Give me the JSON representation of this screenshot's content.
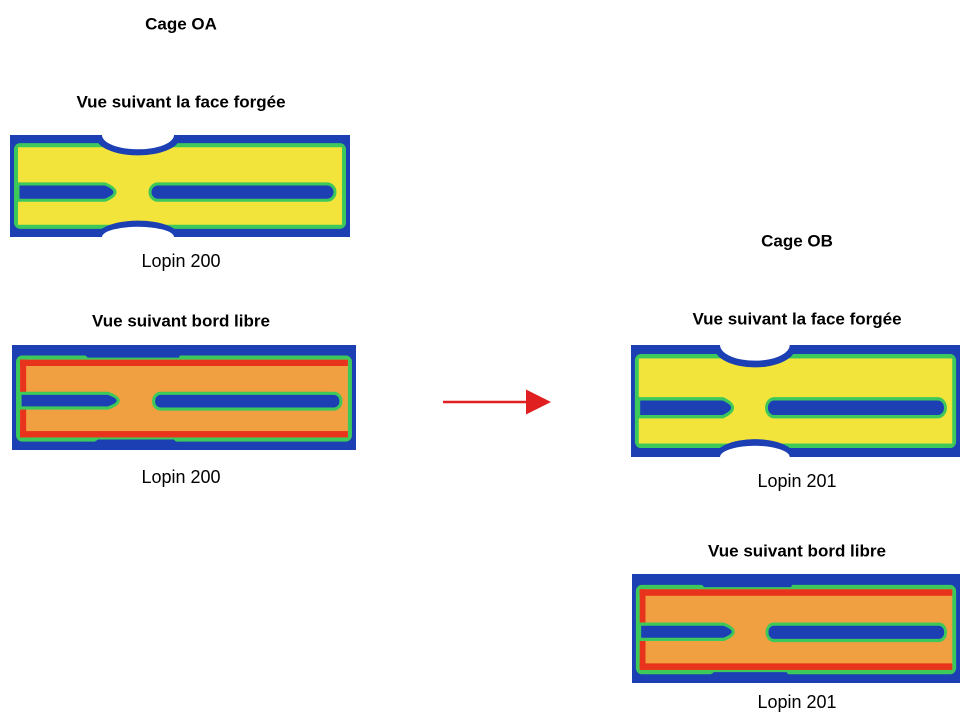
{
  "left": {
    "title": "Cage OA",
    "views": [
      {
        "heading": "Vue suivant la face forgée",
        "caption": "Lopin 200"
      },
      {
        "heading": "Vue suivant bord libre",
        "caption": "Lopin 200"
      }
    ]
  },
  "right": {
    "title": "Cage OB",
    "views": [
      {
        "heading": "Vue suivant la face forgée",
        "caption": "Lopin 201"
      },
      {
        "heading": "Vue suivant bord libre",
        "caption": "Lopin 201"
      }
    ]
  }
}
